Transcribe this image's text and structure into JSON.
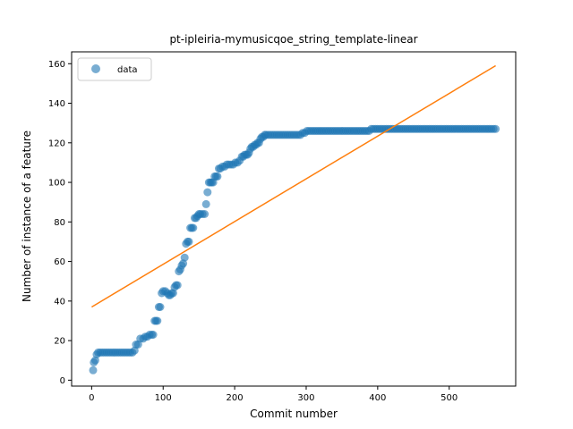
{
  "chart_data": {
    "type": "scatter",
    "title": "pt-ipleiria-mymusicqoe_string_template-linear",
    "xlabel": "Commit number",
    "ylabel": "Number of instance of a feature",
    "xlim": [
      -28,
      593
    ],
    "ylim": [
      -3,
      166
    ],
    "x_ticks": [
      0,
      100,
      200,
      300,
      400,
      500
    ],
    "y_ticks": [
      0,
      20,
      40,
      60,
      80,
      100,
      120,
      140,
      160
    ],
    "grid": false,
    "legend": {
      "position": "top-left",
      "entries": [
        "data"
      ]
    },
    "colors": {
      "data": "#1f77b4",
      "fit": "#ff7f0e"
    },
    "series": [
      {
        "name": "data",
        "kind": "scatter",
        "points": [
          [
            2,
            5
          ],
          [
            3,
            9
          ],
          [
            5,
            10
          ],
          [
            7,
            13
          ],
          [
            9,
            14
          ],
          [
            12,
            14
          ],
          [
            15,
            14
          ],
          [
            18,
            14
          ],
          [
            21,
            14
          ],
          [
            24,
            14
          ],
          [
            27,
            14
          ],
          [
            30,
            14
          ],
          [
            33,
            14
          ],
          [
            36,
            14
          ],
          [
            39,
            14
          ],
          [
            42,
            14
          ],
          [
            45,
            14
          ],
          [
            48,
            14
          ],
          [
            51,
            14
          ],
          [
            54,
            14
          ],
          [
            57,
            14
          ],
          [
            60,
            15
          ],
          [
            62,
            18
          ],
          [
            65,
            18
          ],
          [
            68,
            21
          ],
          [
            72,
            21
          ],
          [
            75,
            22
          ],
          [
            78,
            22
          ],
          [
            81,
            23
          ],
          [
            84,
            23
          ],
          [
            86,
            23
          ],
          [
            88,
            30
          ],
          [
            90,
            30
          ],
          [
            92,
            30
          ],
          [
            94,
            37
          ],
          [
            96,
            37
          ],
          [
            98,
            44
          ],
          [
            100,
            45
          ],
          [
            103,
            45
          ],
          [
            106,
            44
          ],
          [
            108,
            43
          ],
          [
            110,
            43
          ],
          [
            112,
            44
          ],
          [
            114,
            44
          ],
          [
            116,
            47
          ],
          [
            118,
            48
          ],
          [
            120,
            48
          ],
          [
            122,
            55
          ],
          [
            124,
            56
          ],
          [
            126,
            58
          ],
          [
            128,
            59
          ],
          [
            130,
            62
          ],
          [
            132,
            69
          ],
          [
            134,
            70
          ],
          [
            136,
            70
          ],
          [
            138,
            77
          ],
          [
            140,
            77
          ],
          [
            142,
            77
          ],
          [
            144,
            82
          ],
          [
            146,
            82
          ],
          [
            148,
            83
          ],
          [
            150,
            84
          ],
          [
            152,
            84
          ],
          [
            155,
            84
          ],
          [
            158,
            84
          ],
          [
            160,
            89
          ],
          [
            162,
            95
          ],
          [
            164,
            100
          ],
          [
            166,
            100
          ],
          [
            168,
            100
          ],
          [
            170,
            100
          ],
          [
            172,
            103
          ],
          [
            174,
            103
          ],
          [
            176,
            103
          ],
          [
            178,
            107
          ],
          [
            180,
            107
          ],
          [
            183,
            108
          ],
          [
            186,
            108
          ],
          [
            189,
            109
          ],
          [
            192,
            109
          ],
          [
            195,
            109
          ],
          [
            198,
            109
          ],
          [
            201,
            110
          ],
          [
            204,
            110
          ],
          [
            207,
            111
          ],
          [
            210,
            113
          ],
          [
            212,
            113
          ],
          [
            214,
            114
          ],
          [
            216,
            114
          ],
          [
            218,
            114
          ],
          [
            220,
            115
          ],
          [
            222,
            117
          ],
          [
            224,
            118
          ],
          [
            226,
            118
          ],
          [
            228,
            119
          ],
          [
            230,
            119
          ],
          [
            232,
            120
          ],
          [
            234,
            120
          ],
          [
            236,
            122
          ],
          [
            238,
            123
          ],
          [
            240,
            123
          ],
          [
            242,
            124
          ],
          [
            244,
            124
          ],
          [
            247,
            124
          ],
          [
            250,
            124
          ],
          [
            253,
            124
          ],
          [
            256,
            124
          ],
          [
            259,
            124
          ],
          [
            262,
            124
          ],
          [
            265,
            124
          ],
          [
            268,
            124
          ],
          [
            271,
            124
          ],
          [
            274,
            124
          ],
          [
            277,
            124
          ],
          [
            280,
            124
          ],
          [
            283,
            124
          ],
          [
            286,
            124
          ],
          [
            289,
            124
          ],
          [
            292,
            124
          ],
          [
            295,
            125
          ],
          [
            298,
            125
          ],
          [
            301,
            126
          ],
          [
            304,
            126
          ],
          [
            307,
            126
          ],
          [
            310,
            126
          ],
          [
            313,
            126
          ],
          [
            316,
            126
          ],
          [
            319,
            126
          ],
          [
            322,
            126
          ],
          [
            325,
            126
          ],
          [
            328,
            126
          ],
          [
            331,
            126
          ],
          [
            334,
            126
          ],
          [
            337,
            126
          ],
          [
            340,
            126
          ],
          [
            343,
            126
          ],
          [
            346,
            126
          ],
          [
            349,
            126
          ],
          [
            352,
            126
          ],
          [
            355,
            126
          ],
          [
            358,
            126
          ],
          [
            361,
            126
          ],
          [
            364,
            126
          ],
          [
            367,
            126
          ],
          [
            370,
            126
          ],
          [
            373,
            126
          ],
          [
            376,
            126
          ],
          [
            379,
            126
          ],
          [
            382,
            126
          ],
          [
            385,
            126
          ],
          [
            388,
            126
          ],
          [
            391,
            127
          ],
          [
            394,
            127
          ],
          [
            397,
            127
          ],
          [
            400,
            127
          ],
          [
            403,
            127
          ],
          [
            406,
            127
          ],
          [
            409,
            127
          ],
          [
            412,
            127
          ],
          [
            415,
            127
          ],
          [
            418,
            127
          ],
          [
            421,
            127
          ],
          [
            424,
            127
          ],
          [
            427,
            127
          ],
          [
            430,
            127
          ],
          [
            433,
            127
          ],
          [
            436,
            127
          ],
          [
            439,
            127
          ],
          [
            442,
            127
          ],
          [
            445,
            127
          ],
          [
            448,
            127
          ],
          [
            451,
            127
          ],
          [
            454,
            127
          ],
          [
            457,
            127
          ],
          [
            460,
            127
          ],
          [
            463,
            127
          ],
          [
            466,
            127
          ],
          [
            469,
            127
          ],
          [
            472,
            127
          ],
          [
            475,
            127
          ],
          [
            478,
            127
          ],
          [
            481,
            127
          ],
          [
            484,
            127
          ],
          [
            487,
            127
          ],
          [
            490,
            127
          ],
          [
            493,
            127
          ],
          [
            496,
            127
          ],
          [
            499,
            127
          ],
          [
            502,
            127
          ],
          [
            505,
            127
          ],
          [
            508,
            127
          ],
          [
            511,
            127
          ],
          [
            514,
            127
          ],
          [
            517,
            127
          ],
          [
            520,
            127
          ],
          [
            523,
            127
          ],
          [
            526,
            127
          ],
          [
            529,
            127
          ],
          [
            532,
            127
          ],
          [
            535,
            127
          ],
          [
            538,
            127
          ],
          [
            541,
            127
          ],
          [
            544,
            127
          ],
          [
            547,
            127
          ],
          [
            550,
            127
          ],
          [
            553,
            127
          ],
          [
            556,
            127
          ],
          [
            559,
            127
          ],
          [
            562,
            127
          ],
          [
            565,
            127
          ]
        ]
      },
      {
        "kind": "line",
        "points": [
          [
            0,
            37
          ],
          [
            565,
            159
          ]
        ]
      }
    ]
  }
}
